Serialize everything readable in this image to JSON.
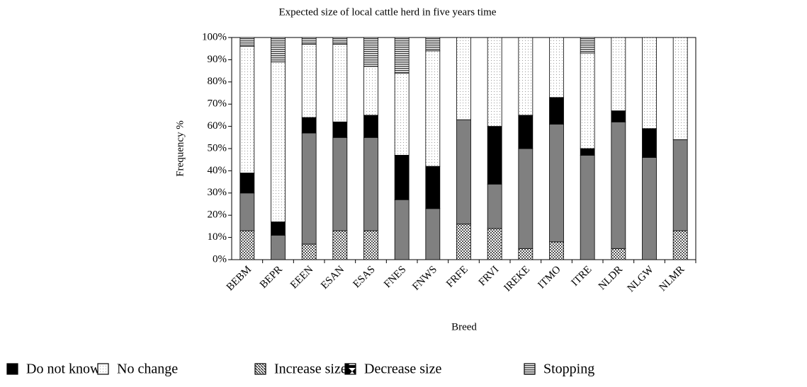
{
  "chart_data": {
    "type": "stacked_bar",
    "title": "Expected size of local cattle herd in five years time",
    "x_label": "Breed",
    "y_label": "Frequency %",
    "categories": [
      "BEBM",
      "BEPR",
      "EEEN",
      "ESAN",
      "ESAS",
      "FNES",
      "FNWS",
      "FRFE",
      "FRVI",
      "IREKE",
      "ITMO",
      "ITRE",
      "NLDR",
      "NLGW",
      "NLMR"
    ],
    "series": [
      {
        "name": "Do not know",
        "color": "#000000",
        "pattern": "solid",
        "values": [
          9,
          6,
          7,
          7,
          10,
          20,
          19,
          0,
          26,
          15,
          12,
          3,
          5,
          13,
          0
        ]
      },
      {
        "name": "No change",
        "color": "#ffffff",
        "pattern": "dots",
        "values": [
          57,
          72,
          33,
          35,
          22,
          37,
          52,
          37,
          40,
          35,
          27,
          43,
          33,
          41,
          46
        ]
      },
      {
        "name": "Increase size",
        "color": "#808080",
        "pattern": "solid",
        "values": [
          17,
          11,
          50,
          42,
          42,
          27,
          23,
          47,
          20,
          45,
          53,
          47,
          57,
          46,
          41
        ]
      },
      {
        "name": "Decrease size",
        "color": "#ffffff",
        "pattern": "checker",
        "values": [
          13,
          0,
          7,
          13,
          13,
          0,
          0,
          16,
          14,
          5,
          8,
          0,
          5,
          0,
          13
        ]
      },
      {
        "name": "Stopping",
        "color": "#ffffff",
        "pattern": "hlines",
        "values": [
          4,
          11,
          3,
          3,
          13,
          16,
          6,
          0,
          0,
          0,
          0,
          7,
          0,
          0,
          0
        ]
      }
    ],
    "ylim": [
      0,
      100
    ],
    "yticks": [
      {
        "value": 0,
        "label": "0%"
      },
      {
        "value": 10,
        "label": "10%"
      },
      {
        "value": 20,
        "label": "20%"
      },
      {
        "value": 30,
        "label": "30%"
      },
      {
        "value": 40,
        "label": "40%"
      },
      {
        "value": 50,
        "label": "50%"
      },
      {
        "value": 60,
        "label": "60%"
      },
      {
        "value": 70,
        "label": "70%"
      },
      {
        "value": 80,
        "label": "80%"
      },
      {
        "value": 90,
        "label": "90%"
      },
      {
        "value": 100,
        "label": "100%"
      }
    ]
  }
}
